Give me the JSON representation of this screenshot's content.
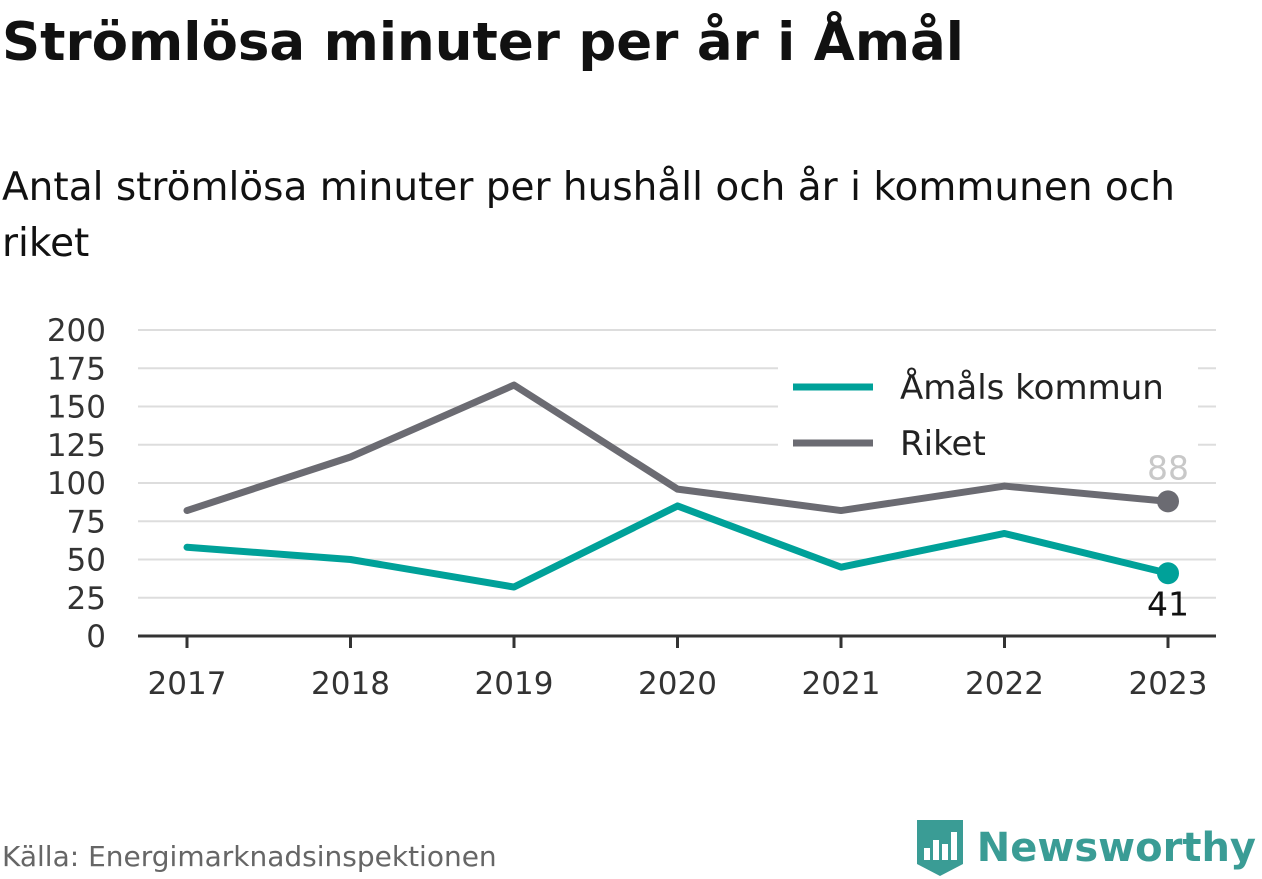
{
  "title": "Strömlösa minuter per år i Åmål",
  "subtitle": "Antal strömlösa minuter per hushåll och år i kommunen och riket",
  "source": "Källa: Energimarknadsinspektionen",
  "brand": {
    "name": "Newsworthy",
    "icon": "bar-chart-logo-icon",
    "color": "#3a9c95"
  },
  "colors": {
    "amal": "#00a199",
    "riket": "#6b6b72",
    "grid": "#dddddd",
    "axis": "#333333"
  },
  "chart_data": {
    "type": "line",
    "categories": [
      "2017",
      "2018",
      "2019",
      "2020",
      "2021",
      "2022",
      "2023"
    ],
    "yticks": [
      "0",
      "25",
      "50",
      "75",
      "100",
      "125",
      "150",
      "175",
      "200"
    ],
    "ylim": [
      0,
      200
    ],
    "grid": true,
    "legend_position": "top-right",
    "series": [
      {
        "key": "amal",
        "name": "Åmåls kommun",
        "values": [
          58,
          50,
          32,
          85,
          45,
          67,
          41
        ],
        "end_label": "41"
      },
      {
        "key": "riket",
        "name": "Riket",
        "values": [
          82,
          117,
          164,
          96,
          82,
          98,
          88
        ],
        "end_label": "88"
      }
    ]
  }
}
